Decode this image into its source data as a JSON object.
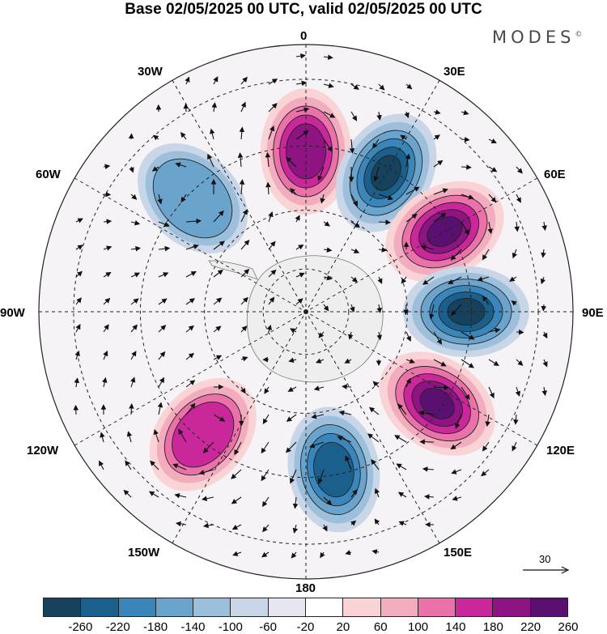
{
  "header": {
    "title": "Base 02/05/2025 00 UTC, valid 02/05/2025 00 UTC",
    "brand": "MODES"
  },
  "map": {
    "projection": "south-polar-stereographic",
    "longitude_labels": {
      "top": "0",
      "top_right": "30E",
      "right_upper": "60E",
      "right": "90E",
      "right_lower": "120E",
      "bottom_right": "150E",
      "bottom": "180",
      "bottom_left": "150W",
      "left_lower": "120W",
      "left": "90W",
      "left_upper": "60W",
      "top_left": "30W"
    },
    "reference_vector": "30",
    "anomaly_centers": [
      {
        "lon": 0,
        "sign": "positive",
        "peak": 220
      },
      {
        "lon": 30,
        "sign": "negative",
        "peak": -260
      },
      {
        "lon": 60,
        "sign": "positive",
        "peak": 260
      },
      {
        "lon": 90,
        "sign": "negative",
        "peak": -260
      },
      {
        "lon": 125,
        "sign": "positive",
        "peak": 260
      },
      {
        "lon": 170,
        "sign": "negative",
        "peak": -220
      },
      {
        "lon": -140,
        "sign": "positive",
        "peak": 180
      },
      {
        "lon": -45,
        "sign": "negative",
        "peak": -140
      }
    ]
  },
  "colorbar": {
    "ticks": [
      "-260",
      "-220",
      "-180",
      "-140",
      "-100",
      "-60",
      "-20",
      "20",
      "60",
      "100",
      "140",
      "180",
      "220",
      "260"
    ],
    "colors": [
      "#16425e",
      "#1b5f8d",
      "#3a85b9",
      "#6aa3cc",
      "#9cc0dc",
      "#c9d6e8",
      "#e6e6f1",
      "#ffffff",
      "#f9d3d5",
      "#f2acbd",
      "#ea72a9",
      "#c9279a",
      "#8e1383",
      "#5a1070"
    ]
  }
}
